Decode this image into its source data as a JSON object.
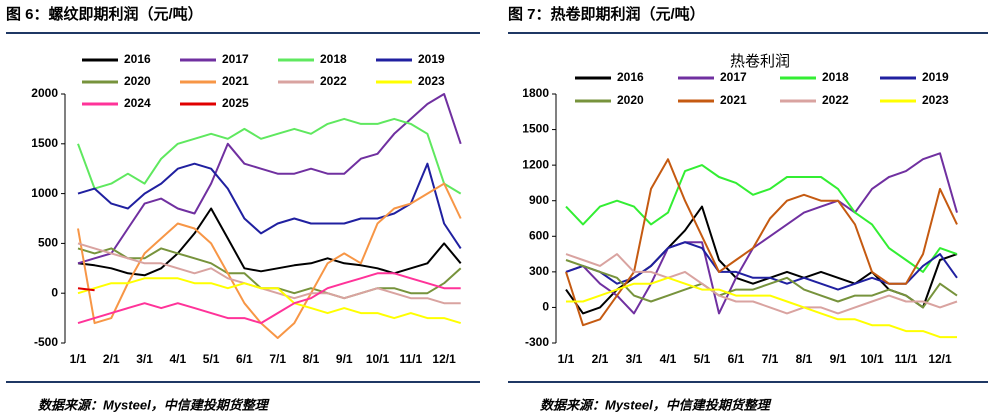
{
  "headers": [
    "图 6：螺纹即期利润（元/吨）",
    "图 7：热卷即期利润（元/吨）"
  ],
  "sources": [
    "数据来源：Mysteel，中信建投期货整理",
    "数据来源：Mysteel，中信建投期货整理"
  ],
  "chart_data": [
    {
      "type": "line",
      "categories": [
        "1/1",
        null,
        "2/1",
        null,
        "3/1",
        null,
        "4/1",
        null,
        "5/1",
        null,
        "6/1",
        null,
        "7/1",
        null,
        "8/1",
        null,
        "9/1",
        null,
        "10/1",
        null,
        "11/1",
        null,
        "12/1",
        null
      ],
      "ylim": [
        -500,
        2000
      ],
      "yticks": [
        -500,
        0,
        500,
        1000,
        1500,
        2000
      ],
      "series": [
        {
          "name": "2016",
          "color": "#000000",
          "values": [
            300,
            280,
            250,
            200,
            180,
            250,
            400,
            600,
            850,
            550,
            250,
            220,
            250,
            280,
            300,
            350,
            300,
            280,
            250,
            200,
            250,
            300,
            500,
            300
          ]
        },
        {
          "name": "2017",
          "color": "#7030a0",
          "values": [
            300,
            350,
            400,
            650,
            900,
            950,
            850,
            800,
            1100,
            1500,
            1300,
            1250,
            1200,
            1200,
            1250,
            1200,
            1200,
            1350,
            1400,
            1600,
            1750,
            1900,
            2000,
            1500
          ]
        },
        {
          "name": "2018",
          "color": "#5fe85f",
          "values": [
            1500,
            1050,
            1100,
            1200,
            1100,
            1350,
            1500,
            1550,
            1600,
            1550,
            1650,
            1550,
            1600,
            1650,
            1600,
            1700,
            1750,
            1700,
            1700,
            1750,
            1700,
            1600,
            1100,
            1000
          ]
        },
        {
          "name": "2019",
          "color": "#2020a0",
          "values": [
            1000,
            1050,
            900,
            850,
            1000,
            1100,
            1250,
            1300,
            1250,
            1050,
            750,
            600,
            700,
            750,
            700,
            700,
            700,
            750,
            750,
            800,
            900,
            1300,
            700,
            450
          ]
        },
        {
          "name": "2020",
          "color": "#77933c",
          "values": [
            450,
            400,
            450,
            350,
            350,
            450,
            400,
            350,
            300,
            200,
            200,
            50,
            50,
            0,
            50,
            0,
            -50,
            0,
            50,
            50,
            0,
            0,
            100,
            250
          ]
        },
        {
          "name": "2021",
          "color": "#f79646",
          "values": [
            650,
            -300,
            -250,
            100,
            400,
            550,
            700,
            650,
            500,
            200,
            -100,
            -300,
            -450,
            -300,
            0,
            300,
            400,
            300,
            700,
            850,
            900,
            1000,
            1100,
            750
          ]
        },
        {
          "name": "2022",
          "color": "#d9a3a0",
          "values": [
            500,
            450,
            400,
            350,
            300,
            300,
            250,
            200,
            250,
            150,
            100,
            50,
            0,
            -50,
            0,
            0,
            -50,
            0,
            50,
            0,
            -50,
            -50,
            -100,
            -100
          ]
        },
        {
          "name": "2023",
          "color": "#ffff00",
          "values": [
            0,
            50,
            100,
            100,
            150,
            150,
            150,
            100,
            100,
            50,
            100,
            50,
            50,
            -100,
            -150,
            -200,
            -150,
            -200,
            -200,
            -250,
            -200,
            -250,
            -250,
            -300
          ]
        },
        {
          "name": "2024",
          "color": "#ff3399",
          "values": [
            -300,
            -250,
            -200,
            -150,
            -100,
            -150,
            -100,
            -150,
            -200,
            -250,
            -250,
            -300,
            -200,
            -100,
            -50,
            50,
            100,
            150,
            200,
            200,
            150,
            100,
            50,
            50
          ]
        },
        {
          "name": "2025",
          "color": "#e00000",
          "values": [
            50,
            30,
            null,
            null,
            null,
            null,
            null,
            null,
            null,
            null,
            null,
            null,
            null,
            null,
            null,
            null,
            null,
            null,
            null,
            null,
            null,
            null,
            null,
            null
          ]
        }
      ]
    },
    {
      "type": "line",
      "title": "热卷利润",
      "categories": [
        "1/1",
        null,
        "2/1",
        null,
        "3/1",
        null,
        "4/1",
        null,
        "5/1",
        null,
        "6/1",
        null,
        "7/1",
        null,
        "8/1",
        null,
        "9/1",
        null,
        "10/1",
        null,
        "11/1",
        null,
        "12/1",
        null
      ],
      "ylim": [
        -300,
        1800
      ],
      "yticks": [
        -300,
        0,
        300,
        600,
        900,
        1200,
        1500,
        1800
      ],
      "series": [
        {
          "name": "2016",
          "color": "#000000",
          "values": [
            150,
            -50,
            0,
            150,
            250,
            350,
            500,
            650,
            850,
            400,
            250,
            200,
            250,
            300,
            250,
            300,
            250,
            200,
            300,
            150,
            100,
            0,
            400,
            450
          ]
        },
        {
          "name": "2017",
          "color": "#7030a0",
          "values": [
            300,
            350,
            200,
            100,
            -50,
            200,
            500,
            550,
            550,
            -50,
            250,
            500,
            600,
            700,
            800,
            850,
            900,
            800,
            1000,
            1100,
            1150,
            1250,
            1300,
            800
          ]
        },
        {
          "name": "2018",
          "color": "#33ee33",
          "values": [
            850,
            700,
            850,
            900,
            850,
            700,
            800,
            1150,
            1200,
            1100,
            1050,
            950,
            1000,
            1100,
            1100,
            1100,
            1000,
            800,
            700,
            500,
            400,
            300,
            500,
            450
          ]
        },
        {
          "name": "2019",
          "color": "#2020a0",
          "values": [
            300,
            350,
            300,
            200,
            250,
            350,
            500,
            550,
            500,
            300,
            300,
            250,
            250,
            200,
            250,
            200,
            150,
            200,
            250,
            200,
            200,
            350,
            450,
            250
          ]
        },
        {
          "name": "2020",
          "color": "#77933c",
          "values": [
            400,
            350,
            300,
            250,
            100,
            50,
            100,
            150,
            200,
            100,
            150,
            150,
            200,
            250,
            150,
            100,
            50,
            100,
            100,
            150,
            100,
            0,
            200,
            100
          ]
        },
        {
          "name": "2021",
          "color": "#c55a11",
          "values": [
            300,
            -150,
            -100,
            100,
            300,
            1000,
            1250,
            900,
            600,
            300,
            400,
            500,
            750,
            900,
            950,
            900,
            900,
            700,
            300,
            200,
            200,
            450,
            1000,
            700
          ]
        },
        {
          "name": "2022",
          "color": "#d9a3a0",
          "values": [
            450,
            400,
            350,
            450,
            300,
            300,
            250,
            300,
            200,
            100,
            50,
            50,
            0,
            -50,
            0,
            0,
            -50,
            0,
            50,
            100,
            50,
            50,
            0,
            50
          ]
        },
        {
          "name": "2023",
          "color": "#ffff00",
          "values": [
            50,
            50,
            100,
            150,
            200,
            200,
            250,
            200,
            150,
            150,
            100,
            100,
            100,
            50,
            0,
            -50,
            -100,
            -100,
            -150,
            -150,
            -200,
            -200,
            -250,
            -250
          ]
        }
      ]
    }
  ]
}
